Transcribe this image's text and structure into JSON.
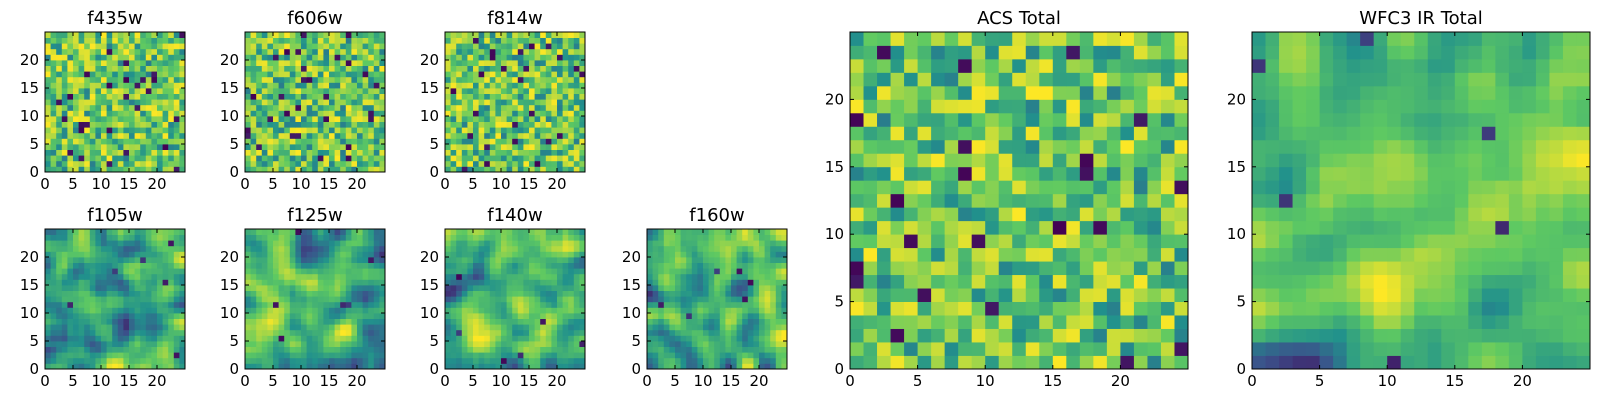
{
  "figure": {
    "colormap": [
      "#440154",
      "#3b528b",
      "#21918c",
      "#5ec962",
      "#fde725"
    ],
    "background": "#ffffff"
  },
  "chart_data": [
    {
      "type": "heatmap",
      "title": "f435w",
      "grid_size": 25,
      "xlim": [
        0,
        25
      ],
      "ylim": [
        0,
        25
      ],
      "xticks": [
        "0",
        "5",
        "10",
        "15",
        "20"
      ],
      "yticks": [
        "0",
        "5",
        "10",
        "15",
        "20"
      ],
      "pattern": "noise",
      "seed": 11
    },
    {
      "type": "heatmap",
      "title": "f606w",
      "grid_size": 25,
      "xlim": [
        0,
        25
      ],
      "ylim": [
        0,
        25
      ],
      "xticks": [
        "0",
        "5",
        "10",
        "15",
        "20"
      ],
      "yticks": [
        "0",
        "5",
        "10",
        "15",
        "20"
      ],
      "pattern": "noise",
      "seed": 23
    },
    {
      "type": "heatmap",
      "title": "f814w",
      "grid_size": 25,
      "xlim": [
        0,
        25
      ],
      "ylim": [
        0,
        25
      ],
      "xticks": [
        "0",
        "5",
        "10",
        "15",
        "20"
      ],
      "yticks": [
        "0",
        "5",
        "10",
        "15",
        "20"
      ],
      "pattern": "noise",
      "seed": 37
    },
    {
      "type": "heatmap",
      "title": "f105w",
      "grid_size": 25,
      "xlim": [
        0,
        25
      ],
      "ylim": [
        0,
        25
      ],
      "xticks": [
        "0",
        "5",
        "10",
        "15",
        "20"
      ],
      "yticks": [
        "0",
        "5",
        "10",
        "15",
        "20"
      ],
      "pattern": "smooth",
      "seed": 41
    },
    {
      "type": "heatmap",
      "title": "f125w",
      "grid_size": 25,
      "xlim": [
        0,
        25
      ],
      "ylim": [
        0,
        25
      ],
      "xticks": [
        "0",
        "5",
        "10",
        "15",
        "20"
      ],
      "yticks": [
        "0",
        "5",
        "10",
        "15",
        "20"
      ],
      "pattern": "smooth",
      "seed": 53
    },
    {
      "type": "heatmap",
      "title": "f140w",
      "grid_size": 25,
      "xlim": [
        0,
        25
      ],
      "ylim": [
        0,
        25
      ],
      "xticks": [
        "0",
        "5",
        "10",
        "15",
        "20"
      ],
      "yticks": [
        "0",
        "5",
        "10",
        "15",
        "20"
      ],
      "pattern": "smooth",
      "seed": 67
    },
    {
      "type": "heatmap",
      "title": "f160w",
      "grid_size": 25,
      "xlim": [
        0,
        25
      ],
      "ylim": [
        0,
        25
      ],
      "xticks": [
        "0",
        "5",
        "10",
        "15",
        "20"
      ],
      "yticks": [
        "0",
        "5",
        "10",
        "15",
        "20"
      ],
      "pattern": "smooth",
      "seed": 79
    },
    {
      "type": "heatmap",
      "title": "ACS Total",
      "grid_size": 25,
      "xlim": [
        0,
        25
      ],
      "ylim": [
        0,
        25
      ],
      "xticks": [
        "0",
        "5",
        "10",
        "15",
        "20"
      ],
      "yticks": [
        "0",
        "5",
        "10",
        "15",
        "20"
      ],
      "pattern": "noise",
      "seed": 89
    },
    {
      "type": "heatmap",
      "title": "WFC3 IR Total",
      "grid_size": 25,
      "xlim": [
        0,
        25
      ],
      "ylim": [
        0,
        25
      ],
      "xticks": [
        "0",
        "5",
        "10",
        "15",
        "20"
      ],
      "yticks": [
        "0",
        "5",
        "10",
        "15",
        "20"
      ],
      "pattern": "smooth",
      "seed": 97
    }
  ]
}
